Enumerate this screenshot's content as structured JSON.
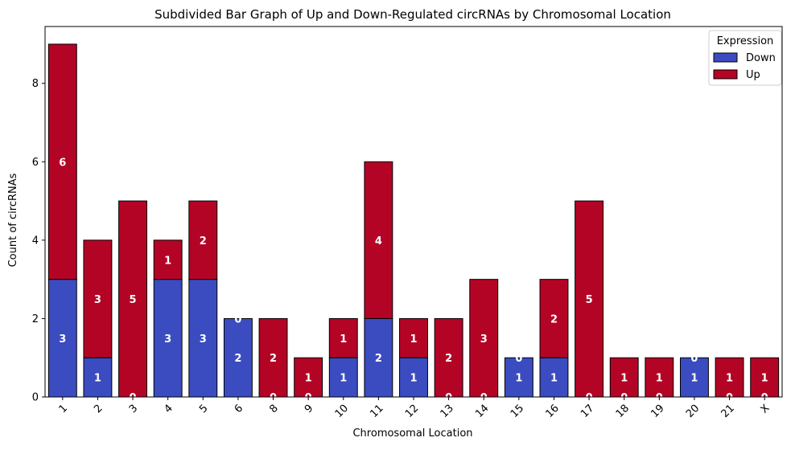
{
  "chart_data": {
    "type": "bar",
    "stacked": true,
    "title": "Subdivided Bar Graph of Up and Down-Regulated circRNAs by Chromosomal Location",
    "xlabel": "Chromosomal Location",
    "ylabel": "Count of circRNAs",
    "ylim": [
      0,
      9.45
    ],
    "yticks": [
      0,
      2,
      4,
      6,
      8
    ],
    "categories": [
      "1",
      "2",
      "3",
      "4",
      "5",
      "6",
      "8",
      "9",
      "10",
      "11",
      "12",
      "13",
      "14",
      "15",
      "16",
      "17",
      "18",
      "19",
      "20",
      "21",
      "X"
    ],
    "series": [
      {
        "name": "Down",
        "color": "#3b4cc0",
        "values": [
          3,
          1,
          0,
          3,
          3,
          2,
          0,
          0,
          1,
          2,
          1,
          0,
          0,
          1,
          1,
          0,
          0,
          0,
          1,
          0,
          0
        ]
      },
      {
        "name": "Up",
        "color": "#b40426",
        "values": [
          6,
          3,
          5,
          1,
          2,
          0,
          2,
          1,
          1,
          4,
          1,
          2,
          3,
          0,
          2,
          5,
          1,
          1,
          0,
          1,
          1
        ]
      }
    ],
    "legend": {
      "title": "Expression",
      "position": "top-right"
    },
    "grid": false,
    "bar_edge_color": "#000000",
    "label_color": "#ffffff"
  }
}
